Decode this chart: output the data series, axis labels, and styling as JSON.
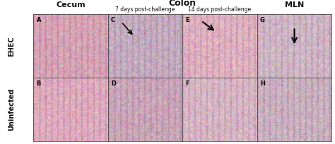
{
  "title_cecum": "Cecum",
  "title_colon": "Colon",
  "title_mln": "MLN",
  "subtitle_7days": "7 days post-challenge",
  "subtitle_14days": "14 days post-challenge",
  "row_label_top": "EHEC",
  "row_label_bottom": "Uninfected",
  "panel_labels": [
    "A",
    "C",
    "E",
    "G",
    "B",
    "D",
    "F",
    "H"
  ],
  "background_color": "#ffffff",
  "image_bg_color": "#e8c8d0",
  "border_color": "#333333",
  "text_color": "#111111",
  "grid_rows": 2,
  "grid_cols": 4,
  "fig_width": 4.74,
  "fig_height": 2.04
}
